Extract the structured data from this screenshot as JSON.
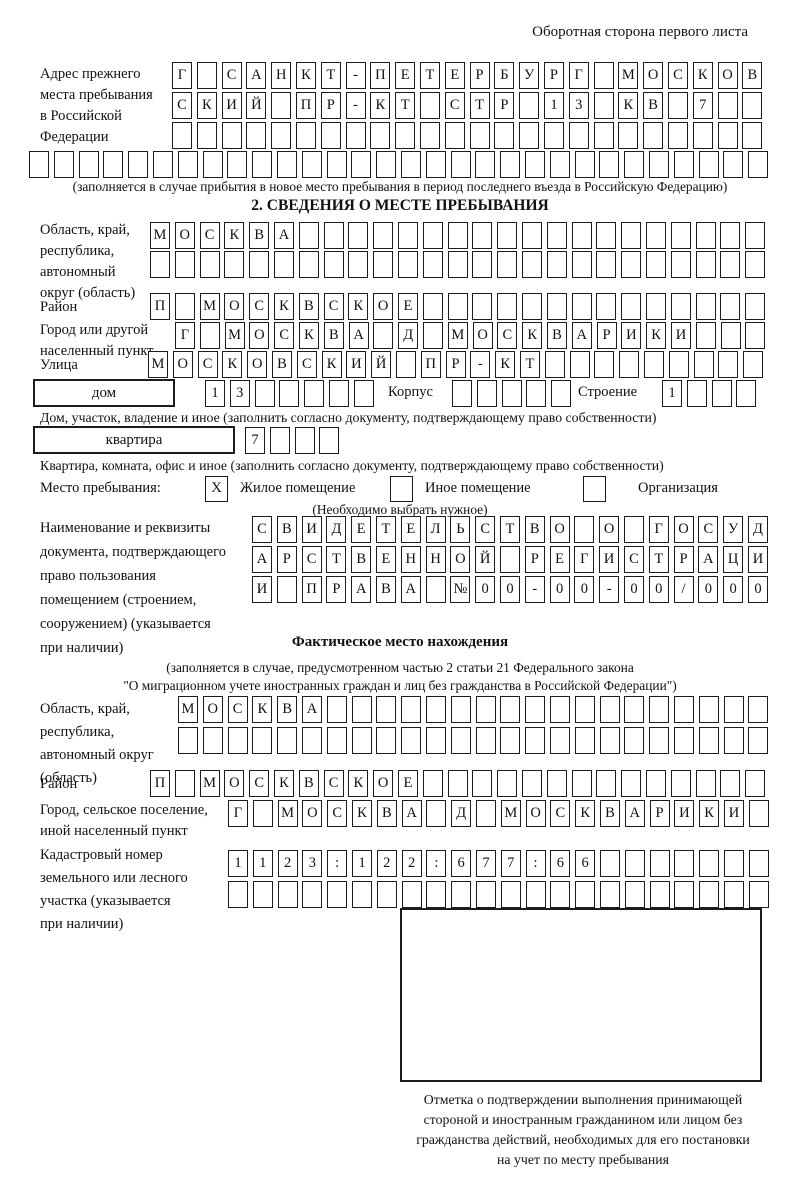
{
  "header": {
    "note": "Оборотная сторона первого листа"
  },
  "prev_address": {
    "label": "Адрес прежнего\nместа пребывания\nв Российской\nФедерации",
    "rows": [
      "Г САНКТ-ПЕТЕРБУРГ МОСКОВ",
      "СКИЙ ПР-КТ СТР 13 КВ 7  ",
      "                        ",
      "                              "
    ],
    "note": "(заполняется в случае прибытия в новое место пребывания в период последнего въезда в Российскую Федерацию)"
  },
  "section2": {
    "title": "2. СВЕДЕНИЯ О МЕСТЕ ПРЕБЫВАНИЯ",
    "oblast": {
      "label": "Область, край,\nреспублика,\nавтономный\nокруг (область)",
      "rows": [
        "МОСКВА                   ",
        "                         "
      ]
    },
    "raion": {
      "label": "Район",
      "cells": "П МОСКВСКОЕ              "
    },
    "gorod": {
      "label": "Город или другой\nнаселенный пункт",
      "cells": "Г МОСКВА Д МОСКВАРИКИ   "
    },
    "ulitsa": {
      "label": "Улица",
      "cells": "МОСКОВСКИЙ ПР-КТ         "
    },
    "dom": {
      "box_label": "дом",
      "cells": "13     "
    },
    "korpus": {
      "label": "Корпус",
      "cells": "     "
    },
    "stroenie": {
      "label": "Строение",
      "cells": "1   "
    },
    "dom_note": "Дом, участок, владение и иное (заполнить согласно документу, подтверждающему право собственности)",
    "kvartira": {
      "box_label": "квартира",
      "cells": "7   "
    },
    "kvartira_note": "Квартира, комната, офис и иное (заполнить согласно документу, подтверждающему право собственности)",
    "mesto": {
      "label": "Место пребывания:",
      "option1": {
        "checkbox": "X",
        "label": "Жилое помещение"
      },
      "option2": {
        "checkbox": "",
        "label": "Иное помещение"
      },
      "option3": {
        "checkbox": "",
        "label": "Организация"
      },
      "note": "(Необходимо выбрать нужное)"
    },
    "document": {
      "label": "Наименование и реквизиты\nдокумента, подтверждающего\nправо пользования\nпомещением (строением,\nсооружением) (указывается\nпри наличии)",
      "rows": [
        "СВИДЕТЕЛЬСТВО О ГОСУД",
        "АРСТВЕННОЙ РЕГИСТРАЦИ",
        "И ПРАВА №00-00-00/000"
      ]
    }
  },
  "fact": {
    "title": "Фактическое место нахождения",
    "note1": "(заполняется в случае, предусмотренном частью 2 статьи 21 Федерального закона",
    "note2": "\"О миграционном учете иностранных граждан и лиц без гражданства в Российской Федерации\")",
    "oblast": {
      "label": "Область, край,\nреспублика,\nавтономный округ\n(область)",
      "rows": [
        "МОСКВА                  ",
        "                        "
      ]
    },
    "raion": {
      "label": "Район",
      "cells": "П МОСКВСКОЕ              "
    },
    "gorod": {
      "label": "Город, сельское поселение,\nиной населенный пункт",
      "cells": "Г МОСКВА Д МОСКВАРИКИ "
    },
    "cadastre": {
      "label": "Кадастровый номер\nземельного или лесного\nучастка (указывается\nпри наличии)",
      "rows": [
        "1123:122:677:66       ",
        "                      "
      ]
    },
    "stamp_note": "Отметка о подтверждении выполнения принимающей\nстороной и иностранным гражданином или лицом без\nгражданства действий, необходимых для его постановки\nна учет по месту пребывания"
  }
}
